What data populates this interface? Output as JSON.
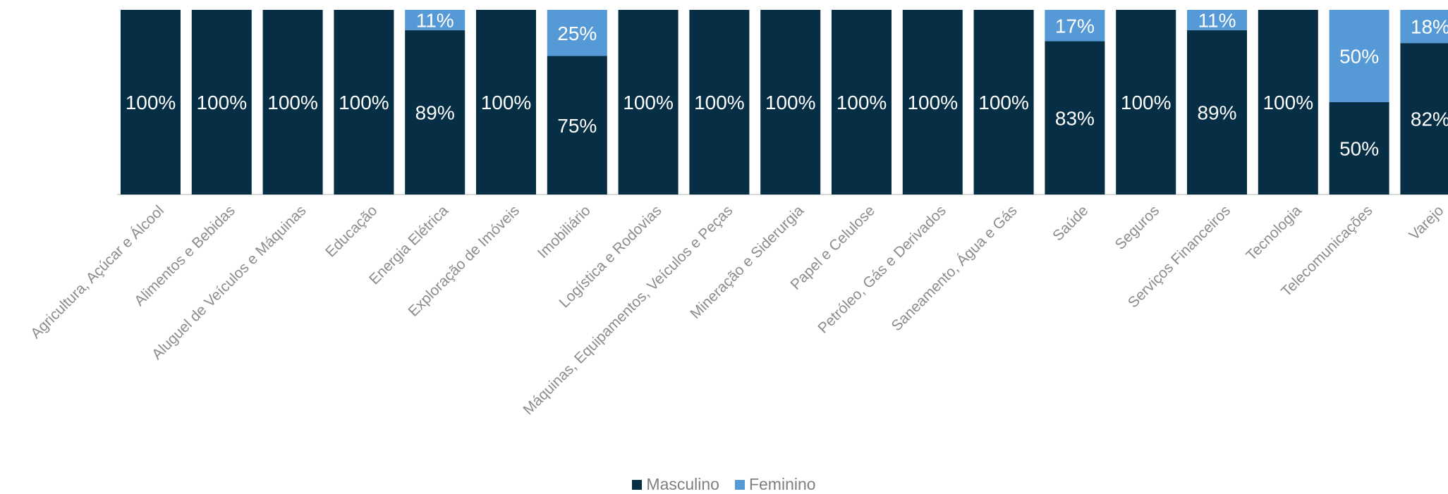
{
  "chart_data": {
    "type": "bar",
    "stacked": true,
    "categories": [
      "Agricultura, Açúcar e Álcool",
      "Alimentos e Bebidas",
      "Aluguel de Veículos e Máquinas",
      "Educação",
      "Energia Elétrica",
      "Exploração de Imóveis",
      "Imobiliário",
      "Logística e Rodovias",
      "Máquinas, Equipamentos, Veículos e Peças",
      "Mineração e Siderurgia",
      "Papel e Celulose",
      "Petróleo, Gás e Derivados",
      "Saneamento, Água e Gás",
      "Saúde",
      "Seguros",
      "Serviços Financeiros",
      "Tecnologia",
      "Telecomunicações",
      "Varejo"
    ],
    "series": [
      {
        "name": "Masculino",
        "color": "#062e45",
        "values": [
          100,
          100,
          100,
          100,
          89,
          100,
          75,
          100,
          100,
          100,
          100,
          100,
          100,
          83,
          100,
          89,
          100,
          50,
          82
        ]
      },
      {
        "name": "Feminino",
        "color": "#559ad6",
        "values": [
          0,
          0,
          0,
          0,
          11,
          0,
          25,
          0,
          0,
          0,
          0,
          0,
          0,
          17,
          0,
          11,
          0,
          50,
          18
        ]
      }
    ],
    "ylim": [
      0,
      100
    ],
    "value_suffix": "%",
    "grid": false,
    "legend_position": "bottom"
  }
}
